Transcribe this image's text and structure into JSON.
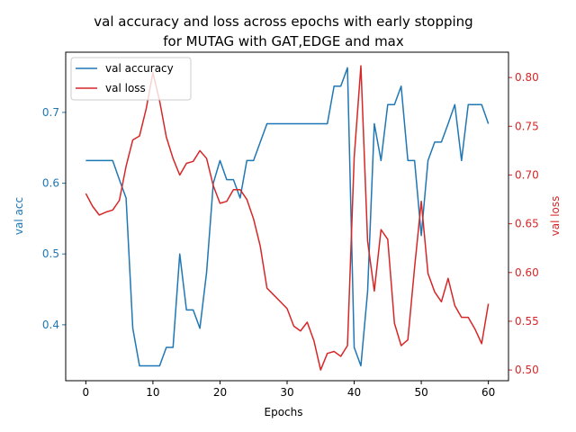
{
  "chart_data": {
    "type": "line",
    "title": "val accuracy and loss across epochs with early stopping\nfor MUTAG with GAT,EDGE and max",
    "xlabel": "Epochs",
    "ylabel_left": "val acc",
    "ylabel_right": "val loss",
    "xlim": [
      -3,
      63
    ],
    "ylim_left": [
      0.321,
      0.785
    ],
    "ylim_right": [
      0.489,
      0.826
    ],
    "xticks": [
      0,
      10,
      20,
      30,
      40,
      50,
      60
    ],
    "yticks_left": [
      0.4,
      0.5,
      0.6,
      0.7
    ],
    "yticks_right": [
      0.5,
      0.55,
      0.6,
      0.65,
      0.7,
      0.75,
      0.8
    ],
    "grid": false,
    "legend_position": "top-left",
    "colors": {
      "accuracy": "#1f77b4",
      "loss": "#d62728",
      "axes": "#000000"
    },
    "x": [
      0,
      1,
      2,
      3,
      4,
      5,
      6,
      7,
      8,
      9,
      10,
      11,
      12,
      13,
      14,
      15,
      16,
      17,
      18,
      19,
      20,
      21,
      22,
      23,
      24,
      25,
      26,
      27,
      28,
      29,
      30,
      31,
      32,
      33,
      34,
      35,
      36,
      37,
      38,
      39,
      40,
      41,
      42,
      43,
      44,
      45,
      46,
      47,
      48,
      49,
      50,
      51,
      52,
      53,
      54,
      55,
      56,
      57,
      58,
      59,
      60
    ],
    "series": [
      {
        "name": "val accuracy",
        "axis": "left",
        "values": [
          0.632,
          0.632,
          0.632,
          0.632,
          0.632,
          0.605,
          0.579,
          0.395,
          0.342,
          0.342,
          0.342,
          0.342,
          0.368,
          0.368,
          0.5,
          0.421,
          0.421,
          0.395,
          0.474,
          0.6,
          0.632,
          0.605,
          0.605,
          0.579,
          0.632,
          0.632,
          0.658,
          0.684,
          0.684,
          0.684,
          0.684,
          0.684,
          0.684,
          0.684,
          0.684,
          0.684,
          0.684,
          0.737,
          0.737,
          0.763,
          0.368,
          0.342,
          0.447,
          0.684,
          0.632,
          0.711,
          0.711,
          0.737,
          0.632,
          0.632,
          0.526,
          0.632,
          0.658,
          0.658,
          0.684,
          0.711,
          0.632,
          0.711,
          0.711,
          0.711,
          0.684
        ]
      },
      {
        "name": "val loss",
        "axis": "right",
        "values": [
          0.681,
          0.668,
          0.659,
          0.662,
          0.664,
          0.674,
          0.709,
          0.736,
          0.74,
          0.768,
          0.805,
          0.776,
          0.739,
          0.717,
          0.7,
          0.712,
          0.714,
          0.725,
          0.717,
          0.689,
          0.671,
          0.673,
          0.685,
          0.685,
          0.675,
          0.655,
          0.627,
          0.584,
          0.577,
          0.57,
          0.563,
          0.545,
          0.54,
          0.549,
          0.53,
          0.5,
          0.517,
          0.519,
          0.514,
          0.525,
          0.718,
          0.812,
          0.632,
          0.581,
          0.644,
          0.634,
          0.548,
          0.525,
          0.531,
          0.605,
          0.673,
          0.599,
          0.58,
          0.57,
          0.594,
          0.566,
          0.554,
          0.554,
          0.542,
          0.527,
          0.568
        ]
      }
    ]
  }
}
